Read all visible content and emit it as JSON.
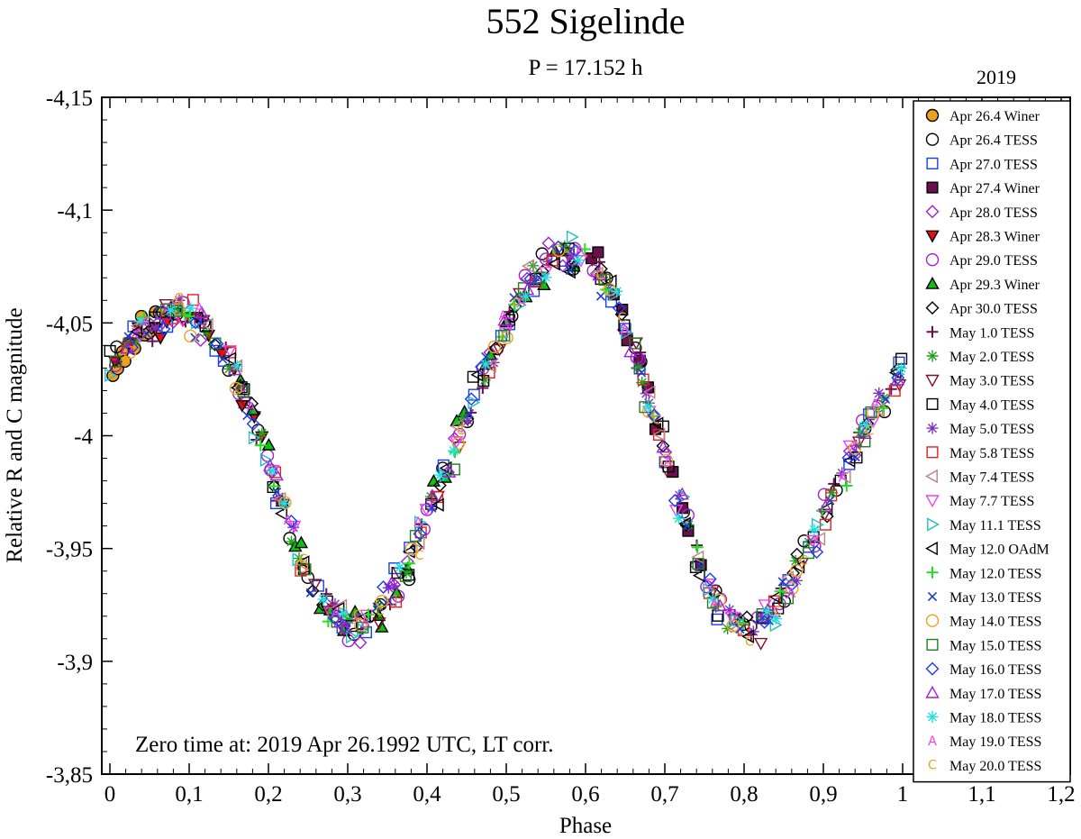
{
  "chart_data": {
    "type": "scatter",
    "title": "552 Sigelinde",
    "subtitle": "P = 17.152 h",
    "legend_title": "2019",
    "xlabel": "Phase",
    "ylabel": "Relative R and C magnitude",
    "xlim": [
      0,
      1.2
    ],
    "ylim": [
      -4.15,
      -3.85
    ],
    "y_inverted": true,
    "x_ticks": [
      0,
      0.1,
      0.2,
      0.3,
      0.4,
      0.5,
      0.6,
      0.7,
      0.8,
      0.9,
      1,
      1.1,
      1.2
    ],
    "x_tick_labels": [
      "0",
      "0,1",
      "0,2",
      "0,3",
      "0,4",
      "0,5",
      "0,6",
      "0,7",
      "0,8",
      "0,9",
      "1",
      "1,1",
      "1,2"
    ],
    "y_ticks": [
      -4.15,
      -4.1,
      -4.05,
      -4,
      -3.95,
      -3.9,
      -3.85
    ],
    "y_tick_labels": [
      "-4,15",
      "-4,1",
      "-4,05",
      "-4",
      "-3,95",
      "-3,9",
      "-3,85"
    ],
    "annotation": "Zero time at: 2019 Apr 26.1992 UTC, LT corr.",
    "legend_position": "right",
    "lightcurve_model": {
      "mean": -3.995,
      "terms": [
        {
          "k": 1,
          "a": 0.008,
          "b": 0.004
        },
        {
          "k": 2,
          "a": -0.05,
          "b": -0.056
        },
        {
          "k": 3,
          "a": 0.002,
          "b": 0.004
        },
        {
          "k": 4,
          "a": 0.006,
          "b": 0.004
        }
      ]
    },
    "series": [
      {
        "name": "Apr 26.4 Winer",
        "marker": "circle",
        "color": "#000000",
        "fill": "#f0a020",
        "phase_range": [
          0.0,
          0.07
        ],
        "n": 12
      },
      {
        "name": "Apr 26.4 TESS",
        "marker": "circle",
        "color": "#000000",
        "fill": "none",
        "phase_range": [
          0.0,
          1.0
        ],
        "n": 30
      },
      {
        "name": "Apr 27.0 TESS",
        "marker": "square",
        "color": "#1a3cf0",
        "fill": "none",
        "phase_range": [
          0.0,
          1.0
        ],
        "n": 30
      },
      {
        "name": "Apr 27.4 Winer",
        "marker": "square",
        "color": "#000000",
        "fill": "#6a1050",
        "phase_range": [
          0.6,
          0.75
        ],
        "n": 12
      },
      {
        "name": "Apr 28.0 TESS",
        "marker": "diamond",
        "color": "#a020d0",
        "fill": "none",
        "phase_range": [
          0.0,
          1.0
        ],
        "n": 30
      },
      {
        "name": "Apr 28.3 Winer",
        "marker": "triangle-down",
        "color": "#000000",
        "fill": "#e01010",
        "phase_range": [
          0.0,
          0.2
        ],
        "n": 14
      },
      {
        "name": "Apr 29.0 TESS",
        "marker": "circle",
        "color": "#a020d0",
        "fill": "none",
        "phase_range": [
          0.0,
          1.0
        ],
        "n": 30
      },
      {
        "name": "Apr 29.3 Winer",
        "marker": "triangle-up",
        "color": "#000000",
        "fill": "#10c010",
        "phase_range": [
          0.15,
          0.6
        ],
        "n": 26
      },
      {
        "name": "Apr 30.0 TESS",
        "marker": "diamond",
        "color": "#000000",
        "fill": "none",
        "phase_range": [
          0.0,
          1.0
        ],
        "n": 30
      },
      {
        "name": "May 1.0 TESS",
        "marker": "plus",
        "color": "#6a1050",
        "fill": "none",
        "phase_range": [
          0.0,
          1.0
        ],
        "n": 24
      },
      {
        "name": "May 2.0 TESS",
        "marker": "asterisk",
        "color": "#20a020",
        "fill": "none",
        "phase_range": [
          0.0,
          1.0
        ],
        "n": 30
      },
      {
        "name": "May 3.0 TESS",
        "marker": "triangle-down",
        "color": "#7a1030",
        "fill": "none",
        "phase_range": [
          0.0,
          1.0
        ],
        "n": 26
      },
      {
        "name": "May 4.0 TESS",
        "marker": "square",
        "color": "#000000",
        "fill": "none",
        "phase_range": [
          0.0,
          1.0
        ],
        "n": 30
      },
      {
        "name": "May 5.0 TESS",
        "marker": "asterisk",
        "color": "#8030c0",
        "fill": "none",
        "phase_range": [
          0.0,
          1.0
        ],
        "n": 28
      },
      {
        "name": "May 5.8 TESS",
        "marker": "square",
        "color": "#e02020",
        "fill": "none",
        "phase_range": [
          0.0,
          1.0
        ],
        "n": 22
      },
      {
        "name": "May 7.4 TESS",
        "marker": "triangle-left",
        "color": "#c08080",
        "fill": "none",
        "phase_range": [
          0.0,
          1.0
        ],
        "n": 22
      },
      {
        "name": "May 7.7 TESS",
        "marker": "triangle-down",
        "color": "#f040f0",
        "fill": "none",
        "phase_range": [
          0.0,
          1.0
        ],
        "n": 22
      },
      {
        "name": "May 11.1 TESS",
        "marker": "triangle-right",
        "color": "#20c0c0",
        "fill": "none",
        "phase_range": [
          0.0,
          1.0
        ],
        "n": 22
      },
      {
        "name": "May 12.0 OAdM",
        "marker": "triangle-left",
        "color": "#000000",
        "fill": "none",
        "phase_range": [
          0.0,
          1.0
        ],
        "n": 26
      },
      {
        "name": "May 12.0 TESS",
        "marker": "plus",
        "color": "#20e020",
        "fill": "none",
        "phase_range": [
          0.0,
          1.0
        ],
        "n": 20
      },
      {
        "name": "May 13.0 TESS",
        "marker": "cross",
        "color": "#1a3cd0",
        "fill": "none",
        "phase_range": [
          0.0,
          1.0
        ],
        "n": 26
      },
      {
        "name": "May 14.0 TESS",
        "marker": "circle",
        "color": "#f0a020",
        "fill": "none",
        "phase_range": [
          0.0,
          1.0
        ],
        "n": 22
      },
      {
        "name": "May 15.0 TESS",
        "marker": "square",
        "color": "#208020",
        "fill": "none",
        "phase_range": [
          0.0,
          1.0
        ],
        "n": 24
      },
      {
        "name": "May 16.0 TESS",
        "marker": "diamond",
        "color": "#1a3cf0",
        "fill": "none",
        "phase_range": [
          0.0,
          1.0
        ],
        "n": 24
      },
      {
        "name": "May 17.0 TESS",
        "marker": "triangle-up",
        "color": "#a020d0",
        "fill": "none",
        "phase_range": [
          0.0,
          1.0
        ],
        "n": 24
      },
      {
        "name": "May 18.0 TESS",
        "marker": "asterisk",
        "color": "#20e0e0",
        "fill": "none",
        "phase_range": [
          0.0,
          1.0
        ],
        "n": 24
      },
      {
        "name": "May 19.0 TESS",
        "marker": "letter-A",
        "color": "#f040f0",
        "fill": "none",
        "phase_range": [
          0.0,
          1.0
        ],
        "n": 16
      },
      {
        "name": "May 20.0 TESS",
        "marker": "letter-C",
        "color": "#f0a020",
        "fill": "none",
        "phase_range": [
          0.0,
          1.0
        ],
        "n": 16
      }
    ]
  }
}
